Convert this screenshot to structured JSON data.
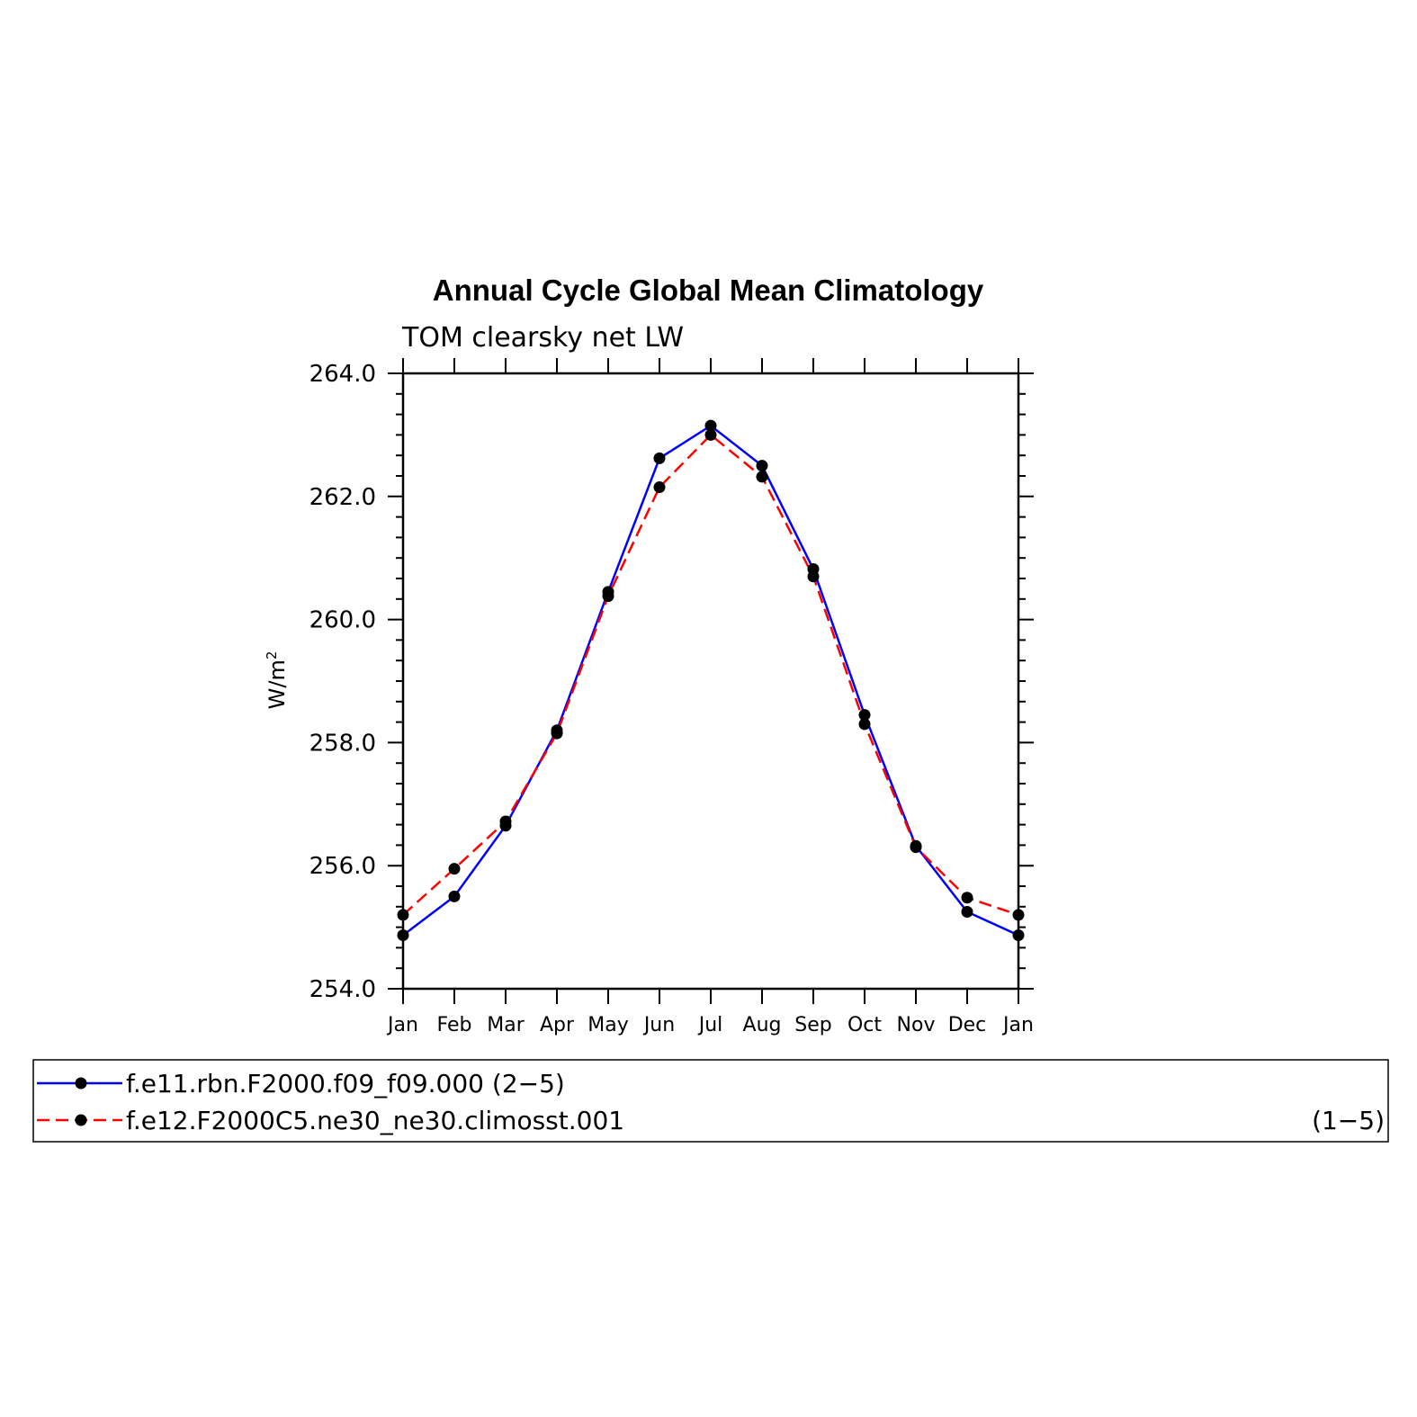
{
  "chart_data": {
    "type": "line",
    "title": "Annual Cycle Global Mean Climatology",
    "subtitle": "TOM clearsky net LW",
    "ylabel": "W/m",
    "ylabel_superscript": "2",
    "xlabel": "",
    "ylim": [
      254.0,
      264.0
    ],
    "y_ticks": [
      "254.0",
      "256.0",
      "258.0",
      "260.0",
      "262.0",
      "264.0"
    ],
    "y_tick_values": [
      254,
      256,
      258,
      260,
      262,
      264
    ],
    "categories": [
      "Jan",
      "Feb",
      "Mar",
      "Apr",
      "May",
      "Jun",
      "Jul",
      "Aug",
      "Sep",
      "Oct",
      "Nov",
      "Dec",
      "Jan"
    ],
    "grid": false,
    "legend_position": "bottom",
    "series": [
      {
        "name": "f.e11.rbn.F2000.f09_f09.000 (2−5)",
        "color": "#0000ff",
        "dash": "solid",
        "values": [
          254.87,
          255.5,
          256.65,
          258.2,
          260.45,
          262.62,
          263.15,
          262.5,
          260.82,
          258.45,
          256.32,
          255.25,
          254.87
        ]
      },
      {
        "name": "f.e12.F2000C5.ne30_ne30.climosst.001",
        "name_suffix": "(1−5)",
        "color": "#ff0000",
        "dash": "dashed",
        "values": [
          255.2,
          255.95,
          256.72,
          258.15,
          260.38,
          262.15,
          263.0,
          262.32,
          260.7,
          258.3,
          256.3,
          255.48,
          255.2
        ]
      }
    ]
  }
}
